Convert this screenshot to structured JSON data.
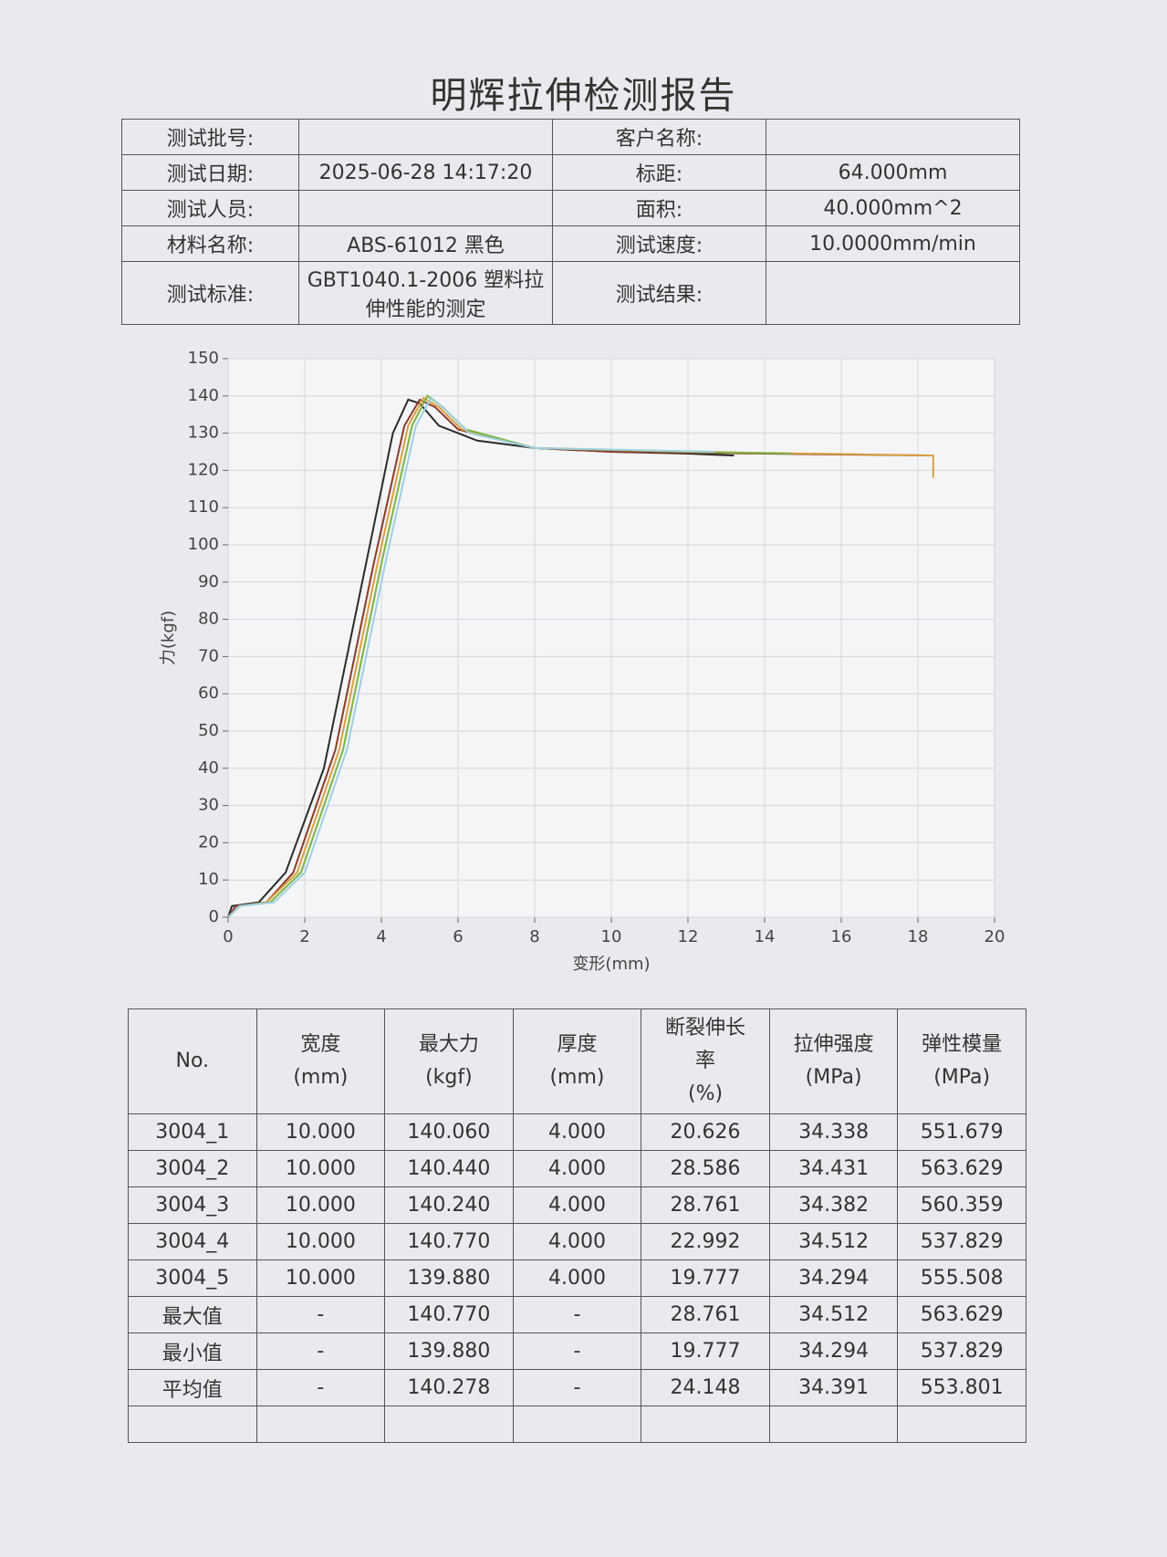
{
  "header": {
    "title": "明辉拉伸检测报告"
  },
  "info": {
    "left": [
      {
        "label": "测试批号:"
      },
      {
        "label": "测试日期:",
        "value": "2025-06-28 14:17:20"
      },
      {
        "label": "测试人员:"
      },
      {
        "label": "材料名称:",
        "value": "ABS-61012 黑色"
      },
      {
        "label": "测试标准:",
        "value": "GBT1040.1-2006 塑料拉伸性能的测定"
      }
    ],
    "right": [
      {
        "label": "客户名称:"
      },
      {
        "label": "标距:",
        "value": "64.000mm"
      },
      {
        "label": "面积:",
        "value": "40.000mm^2"
      },
      {
        "label": "测试速度:",
        "value": "10.0000mm/min"
      },
      {
        "label": "测试结果:"
      }
    ]
  },
  "chart_data": {
    "type": "line",
    "x_label": "变形(mm)",
    "y_label": "力(kgf)",
    "xlim": [
      0,
      20
    ],
    "ylim": [
      0,
      150
    ],
    "xticks": [
      0,
      2,
      4,
      6,
      8,
      10,
      12,
      14,
      16,
      18,
      20
    ],
    "yticks": [
      0,
      10,
      20,
      30,
      40,
      50,
      60,
      70,
      80,
      90,
      100,
      110,
      120,
      130,
      140,
      150
    ],
    "grid": true,
    "series": [
      {
        "color": "#2b2b2b",
        "x": [
          0,
          0.1,
          0.8,
          1.5,
          2.5,
          3.5,
          4.3,
          4.7,
          5.0,
          5.5,
          6.5,
          8,
          10,
          12,
          13.2
        ],
        "values": [
          0,
          3,
          4,
          12,
          40,
          90,
          130,
          139,
          138,
          132,
          128,
          126,
          125,
          124.5,
          124
        ]
      },
      {
        "color": "#8b3a2a",
        "x": [
          0,
          0.2,
          1.0,
          1.7,
          2.8,
          3.8,
          4.6,
          5.0,
          5.4,
          6.0,
          8,
          10,
          14,
          18.3
        ],
        "values": [
          0,
          3,
          4,
          12,
          45,
          95,
          132,
          139,
          137,
          131,
          126,
          125,
          124.5,
          124
        ]
      },
      {
        "color": "#d9a040",
        "x": [
          0,
          0.3,
          1.0,
          1.8,
          2.9,
          3.9,
          4.7,
          5.1,
          5.5,
          6.1,
          8,
          12,
          18.4,
          18.4
        ],
        "values": [
          0,
          3,
          4,
          12,
          45,
          95,
          132,
          139.5,
          137,
          131,
          126,
          125,
          124,
          118
        ]
      },
      {
        "color": "#7cb342",
        "x": [
          0,
          0.3,
          1.1,
          1.9,
          3.0,
          4.0,
          4.8,
          5.2,
          5.6,
          6.2,
          8,
          12,
          14.7
        ],
        "values": [
          0,
          3,
          4,
          12,
          45,
          95,
          132,
          140,
          137,
          131,
          126,
          125,
          124.5
        ]
      },
      {
        "color": "#9ed0e0",
        "x": [
          0,
          0.3,
          1.2,
          2.0,
          3.1,
          4.1,
          4.9,
          5.3,
          5.7,
          6.3,
          8,
          12.7
        ],
        "values": [
          0,
          3,
          4,
          12,
          45,
          95,
          132,
          139.5,
          136,
          130,
          126,
          125
        ]
      }
    ]
  },
  "results": {
    "columns": [
      [
        "No."
      ],
      [
        "宽度",
        "(mm)"
      ],
      [
        "最大力",
        "(kgf)"
      ],
      [
        "厚度",
        "(mm)"
      ],
      [
        "断裂伸长",
        "率",
        "(%)"
      ],
      [
        "拉伸强度",
        "(MPa)"
      ],
      [
        "弹性模量",
        "(MPa)"
      ]
    ],
    "rows": [
      [
        "3004_1",
        "10.000",
        "140.060",
        "4.000",
        "20.626",
        "34.338",
        "551.679"
      ],
      [
        "3004_2",
        "10.000",
        "140.440",
        "4.000",
        "28.586",
        "34.431",
        "563.629"
      ],
      [
        "3004_3",
        "10.000",
        "140.240",
        "4.000",
        "28.761",
        "34.382",
        "560.359"
      ],
      [
        "3004_4",
        "10.000",
        "140.770",
        "4.000",
        "22.992",
        "34.512",
        "537.829"
      ],
      [
        "3004_5",
        "10.000",
        "139.880",
        "4.000",
        "19.777",
        "34.294",
        "555.508"
      ],
      [
        "最大值",
        "-",
        "140.770",
        "-",
        "28.761",
        "34.512",
        "563.629"
      ],
      [
        "最小值",
        "-",
        "139.880",
        "-",
        "19.777",
        "34.294",
        "537.829"
      ],
      [
        "平均值",
        "-",
        "140.278",
        "-",
        "24.148",
        "34.391",
        "553.801"
      ]
    ]
  }
}
